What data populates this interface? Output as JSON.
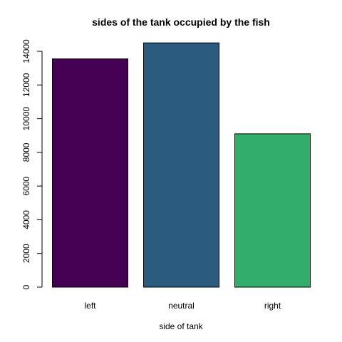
{
  "chart_data": {
    "type": "bar",
    "title": "sides of the tank occupied by the fish",
    "xlabel": "side of tank",
    "ylabel": "",
    "categories": [
      "left",
      "neutral",
      "right"
    ],
    "values": [
      13550,
      14500,
      9100
    ],
    "colors": [
      "#440154",
      "#2A5A7D",
      "#31AF6A"
    ],
    "ylim": [
      0,
      14000
    ],
    "yticks": [
      0,
      2000,
      4000,
      6000,
      8000,
      10000,
      12000,
      14000
    ],
    "grid": false,
    "legend": "none"
  }
}
